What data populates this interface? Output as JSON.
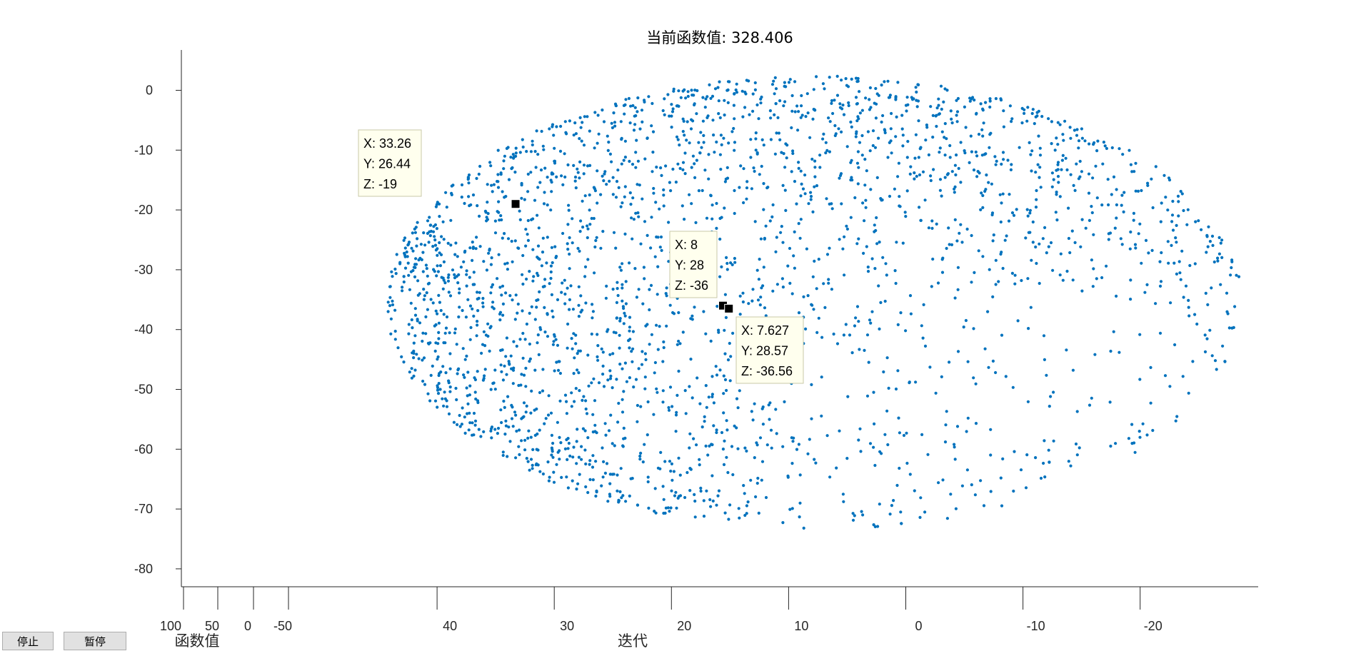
{
  "chart_data": {
    "type": "scatter",
    "title": "当前函数值: 328.406",
    "marker_color": "#0072bd",
    "ylim": [
      -83,
      7
    ],
    "yticks": [
      0,
      -10,
      -20,
      -30,
      -40,
      -50,
      -60,
      -70,
      -80
    ],
    "x_axis": {
      "label": "迭代",
      "range": [
        43,
        -30
      ],
      "ticks": [
        40,
        30,
        20,
        10,
        0,
        -10,
        -20
      ]
    },
    "x2_axis": {
      "label": "函数值",
      "ticks": [
        100,
        50,
        0,
        -50
      ]
    },
    "point_cloud": {
      "count": 2600,
      "shape": "ellipse",
      "x_center": 7.8,
      "x_halfwidth": 36.5,
      "y_center": -35.6,
      "y_halfheight": 38,
      "density": "dense along left and upper edges, sparse along right and lower edges"
    },
    "datatips": [
      {
        "x": "33.26",
        "y": "26.44",
        "z": "-19",
        "label_x": "X: 33.26",
        "label_y": "Y: 26.44",
        "label_z": "Z: -19",
        "anchor": [
          33.3,
          -19
        ]
      },
      {
        "x": "8",
        "y": "28",
        "z": "-36",
        "label_x": "X: 8",
        "label_y": "Y: 28",
        "label_z": "Z: -36",
        "anchor": [
          15.6,
          -36
        ]
      },
      {
        "x": "7.627",
        "y": "28.57",
        "z": "-36.56",
        "label_x": "X: 7.627",
        "label_y": "Y: 28.57",
        "label_z": "Z: -36.56",
        "anchor": [
          15.1,
          -36.5
        ]
      }
    ]
  },
  "controls": {
    "stop_label": "停止",
    "pause_label": "暂停"
  }
}
